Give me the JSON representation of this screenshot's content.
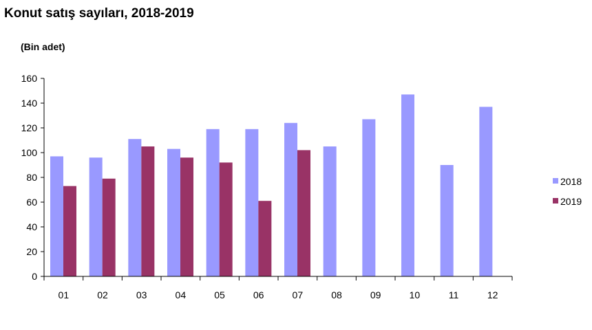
{
  "chart_data": {
    "type": "bar",
    "title": "Konut satış sayıları, 2018-2019",
    "unit_label": "(Bin adet)",
    "xlabel": "",
    "ylabel": "",
    "categories": [
      "01",
      "02",
      "03",
      "04",
      "05",
      "06",
      "07",
      "08",
      "09",
      "10",
      "11",
      "12"
    ],
    "series": [
      {
        "name": "2018",
        "color": "#9999ff",
        "values": [
          97,
          96,
          111,
          103,
          119,
          119,
          124,
          105,
          127,
          147,
          90,
          137
        ]
      },
      {
        "name": "2019",
        "color": "#993366",
        "values": [
          73,
          79,
          105,
          96,
          92,
          61,
          102,
          null,
          null,
          null,
          null,
          null
        ]
      }
    ],
    "ylim": [
      0,
      160
    ],
    "yticks": [
      0,
      20,
      40,
      60,
      80,
      100,
      120,
      140,
      160
    ],
    "grid": false,
    "legend_position": "right"
  }
}
